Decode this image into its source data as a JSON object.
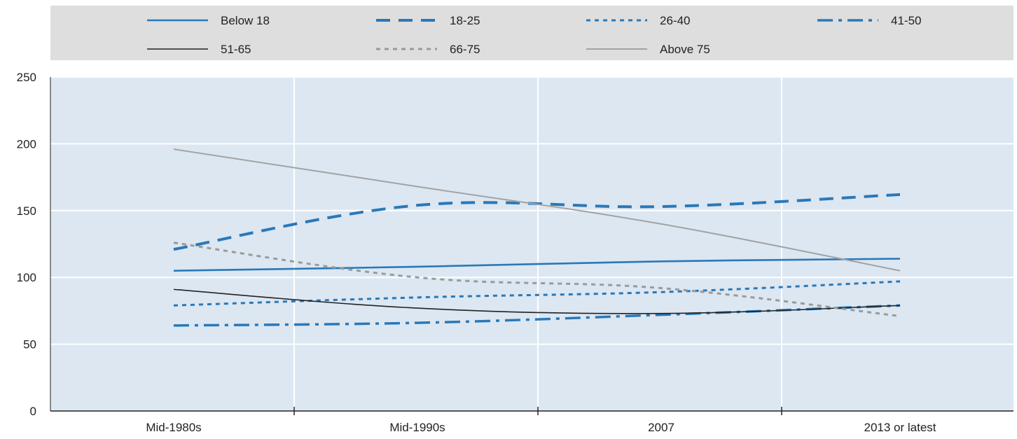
{
  "chart_data": {
    "type": "line",
    "categories": [
      "Mid-1980s",
      "Mid-1990s",
      "2007",
      "2013 or latest"
    ],
    "ylim": [
      0,
      250
    ],
    "yticks": [
      0,
      50,
      100,
      150,
      200,
      250
    ],
    "grid": true,
    "legend_placement": "top",
    "background_color": "#dce7f2",
    "series": [
      {
        "name": "Below 18",
        "values": [
          105,
          108,
          112,
          114
        ],
        "color": "#2a78b8",
        "dash": "solid"
      },
      {
        "name": "18-25",
        "values": [
          121,
          154,
          153,
          162
        ],
        "color": "#2a78b8",
        "dash": "longdash"
      },
      {
        "name": "26-40",
        "values": [
          79,
          85,
          89,
          97
        ],
        "color": "#2a78b8",
        "dash": "dotted"
      },
      {
        "name": "41-50",
        "values": [
          64,
          66,
          72,
          79
        ],
        "color": "#2a78b8",
        "dash": "dashdot"
      },
      {
        "name": "51-65",
        "values": [
          91,
          77,
          73,
          79
        ],
        "color": "#222222",
        "dash": "solid"
      },
      {
        "name": "66-75",
        "values": [
          126,
          100,
          92,
          71
        ],
        "color": "#9a9a9a",
        "dash": "dotted"
      },
      {
        "name": "Above 75",
        "values": [
          196,
          168,
          140,
          105
        ],
        "color": "#a3a3a3",
        "dash": "solid"
      }
    ]
  }
}
